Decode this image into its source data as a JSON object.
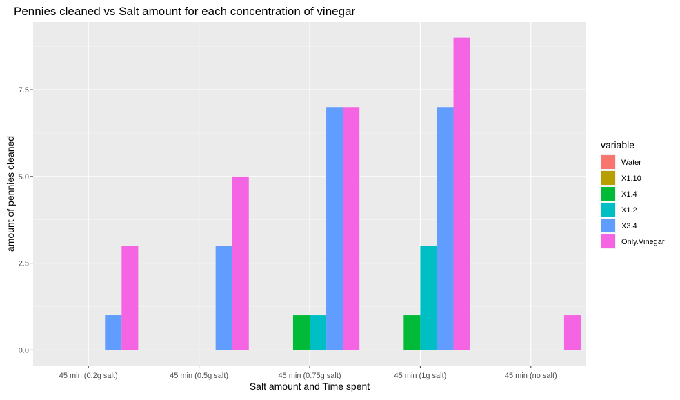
{
  "chart_data": {
    "type": "bar",
    "title": "Pennies cleaned vs Salt amount for each concentration of vinegar",
    "xlabel": "Salt amount and Time spent",
    "ylabel": "amount of pennies cleaned",
    "categories": [
      "45 min (0.2g salt)",
      "45 min (0.5g salt)",
      "45 min (0.75g salt)",
      "45 min (1g salt)",
      "45 min (no salt)"
    ],
    "yticks": [
      "0.0",
      "2.5",
      "5.0",
      "7.5"
    ],
    "ylim": [
      -0.45,
      9.45
    ],
    "grid": true,
    "legend": {
      "title": "variable",
      "position": "right"
    },
    "series": [
      {
        "name": "Water",
        "color": "#F8766D",
        "values": [
          0,
          0,
          0,
          0,
          0
        ]
      },
      {
        "name": "X1.10",
        "color": "#B79F00",
        "values": [
          0,
          0,
          0,
          0,
          0
        ]
      },
      {
        "name": "X1.4",
        "color": "#00BA38",
        "values": [
          0,
          0,
          1,
          1,
          0
        ]
      },
      {
        "name": "X1.2",
        "color": "#00BFC4",
        "values": [
          0,
          0,
          1,
          3,
          0
        ]
      },
      {
        "name": "X3.4",
        "color": "#619CFF",
        "values": [
          1,
          3,
          7,
          7,
          0
        ]
      },
      {
        "name": "Only.Vinegar",
        "color": "#F564E3",
        "values": [
          3,
          5,
          7,
          9,
          1
        ]
      }
    ]
  }
}
